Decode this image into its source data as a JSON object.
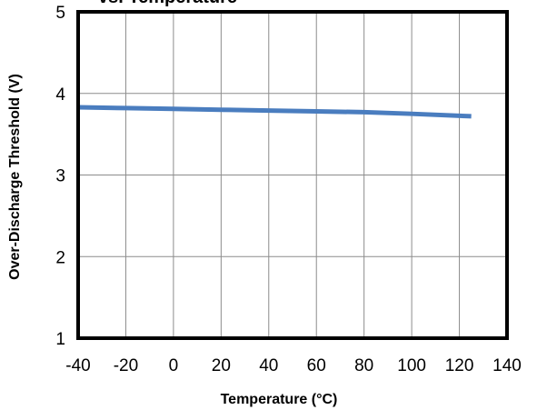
{
  "chart_data": {
    "type": "line",
    "title": "vs. Temperature",
    "xlabel": "Temperature (°C)",
    "ylabel": "Over-Discharge Threshold (V)",
    "xlim": [
      -40,
      140
    ],
    "ylim": [
      1,
      5
    ],
    "xticks": [
      -40,
      -20,
      0,
      20,
      40,
      60,
      80,
      100,
      120,
      140
    ],
    "yticks": [
      1,
      2,
      3,
      4,
      5
    ],
    "grid": true,
    "series": [
      {
        "color": "#4a7dbf",
        "x": [
          -40,
          -20,
          0,
          20,
          40,
          60,
          80,
          100,
          125
        ],
        "y": [
          3.83,
          3.82,
          3.81,
          3.8,
          3.79,
          3.78,
          3.77,
          3.75,
          3.72
        ]
      }
    ]
  }
}
